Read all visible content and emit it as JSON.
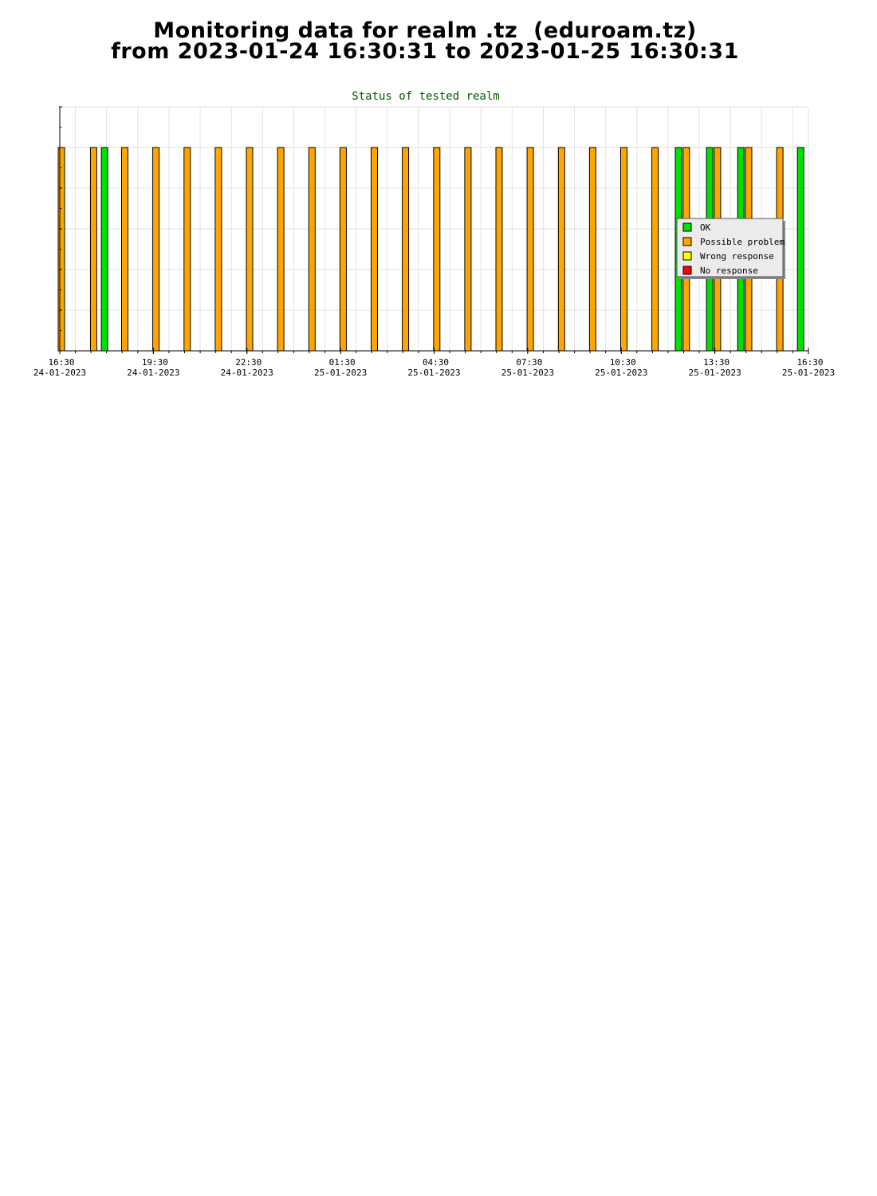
{
  "header": {
    "line1": "Monitoring data for realm .tz  (eduroam.tz)",
    "line2": "from 2023-01-24 16:30:31 to 2023-01-25 16:30:31"
  },
  "chart_data": {
    "type": "bar",
    "title": "Status of tested realm",
    "xlabel": "",
    "ylabel": "",
    "x_range": [
      "2023-01-24 16:30",
      "2023-01-25 16:30"
    ],
    "ylim": [
      0,
      6
    ],
    "grid": true,
    "ticks": [
      {
        "time": "16:30",
        "date": "24-01-2023"
      },
      {
        "time": "19:30",
        "date": "24-01-2023"
      },
      {
        "time": "22:30",
        "date": "24-01-2023"
      },
      {
        "time": "01:30",
        "date": "25-01-2023"
      },
      {
        "time": "04:30",
        "date": "25-01-2023"
      },
      {
        "time": "07:30",
        "date": "25-01-2023"
      },
      {
        "time": "10:30",
        "date": "25-01-2023"
      },
      {
        "time": "13:30",
        "date": "25-01-2023"
      },
      {
        "time": "16:30",
        "date": "25-01-2023"
      }
    ],
    "legend": {
      "placement": "right",
      "entries": [
        {
          "label": "OK",
          "color": "#00e000"
        },
        {
          "label": "Possible problem",
          "color": "#ffa500"
        },
        {
          "label": "Wrong response",
          "color": "#ffff00"
        },
        {
          "label": "No response",
          "color": "#ff0000"
        }
      ]
    },
    "series": [
      {
        "name": "Possible problem",
        "color": "#ffa500",
        "bars": [
          {
            "time": "2023-01-24 16:33",
            "value": 5
          },
          {
            "time": "2023-01-24 17:35",
            "value": 5
          },
          {
            "time": "2023-01-24 18:35",
            "value": 5
          },
          {
            "time": "2023-01-24 19:35",
            "value": 5
          },
          {
            "time": "2023-01-24 20:35",
            "value": 5
          },
          {
            "time": "2023-01-24 21:35",
            "value": 5
          },
          {
            "time": "2023-01-24 22:35",
            "value": 5
          },
          {
            "time": "2023-01-24 23:35",
            "value": 5
          },
          {
            "time": "2023-01-25 00:35",
            "value": 5
          },
          {
            "time": "2023-01-25 01:35",
            "value": 5
          },
          {
            "time": "2023-01-25 02:35",
            "value": 5
          },
          {
            "time": "2023-01-25 03:35",
            "value": 5
          },
          {
            "time": "2023-01-25 04:35",
            "value": 5
          },
          {
            "time": "2023-01-25 05:35",
            "value": 5
          },
          {
            "time": "2023-01-25 06:35",
            "value": 5
          },
          {
            "time": "2023-01-25 07:35",
            "value": 5
          },
          {
            "time": "2023-01-25 08:35",
            "value": 5
          },
          {
            "time": "2023-01-25 09:35",
            "value": 5
          },
          {
            "time": "2023-01-25 10:35",
            "value": 5
          },
          {
            "time": "2023-01-25 11:35",
            "value": 5
          },
          {
            "time": "2023-01-25 12:35",
            "value": 5
          },
          {
            "time": "2023-01-25 13:35",
            "value": 5
          },
          {
            "time": "2023-01-25 14:35",
            "value": 5
          },
          {
            "time": "2023-01-25 15:35",
            "value": 5
          }
        ]
      },
      {
        "name": "OK",
        "color": "#00e000",
        "bars": [
          {
            "time": "2023-01-24 17:56",
            "value": 5
          },
          {
            "time": "2023-01-25 12:20",
            "value": 5
          },
          {
            "time": "2023-01-25 13:20",
            "value": 5
          },
          {
            "time": "2023-01-25 14:20",
            "value": 5
          },
          {
            "time": "2023-01-25 16:15",
            "value": 5
          }
        ]
      }
    ]
  }
}
